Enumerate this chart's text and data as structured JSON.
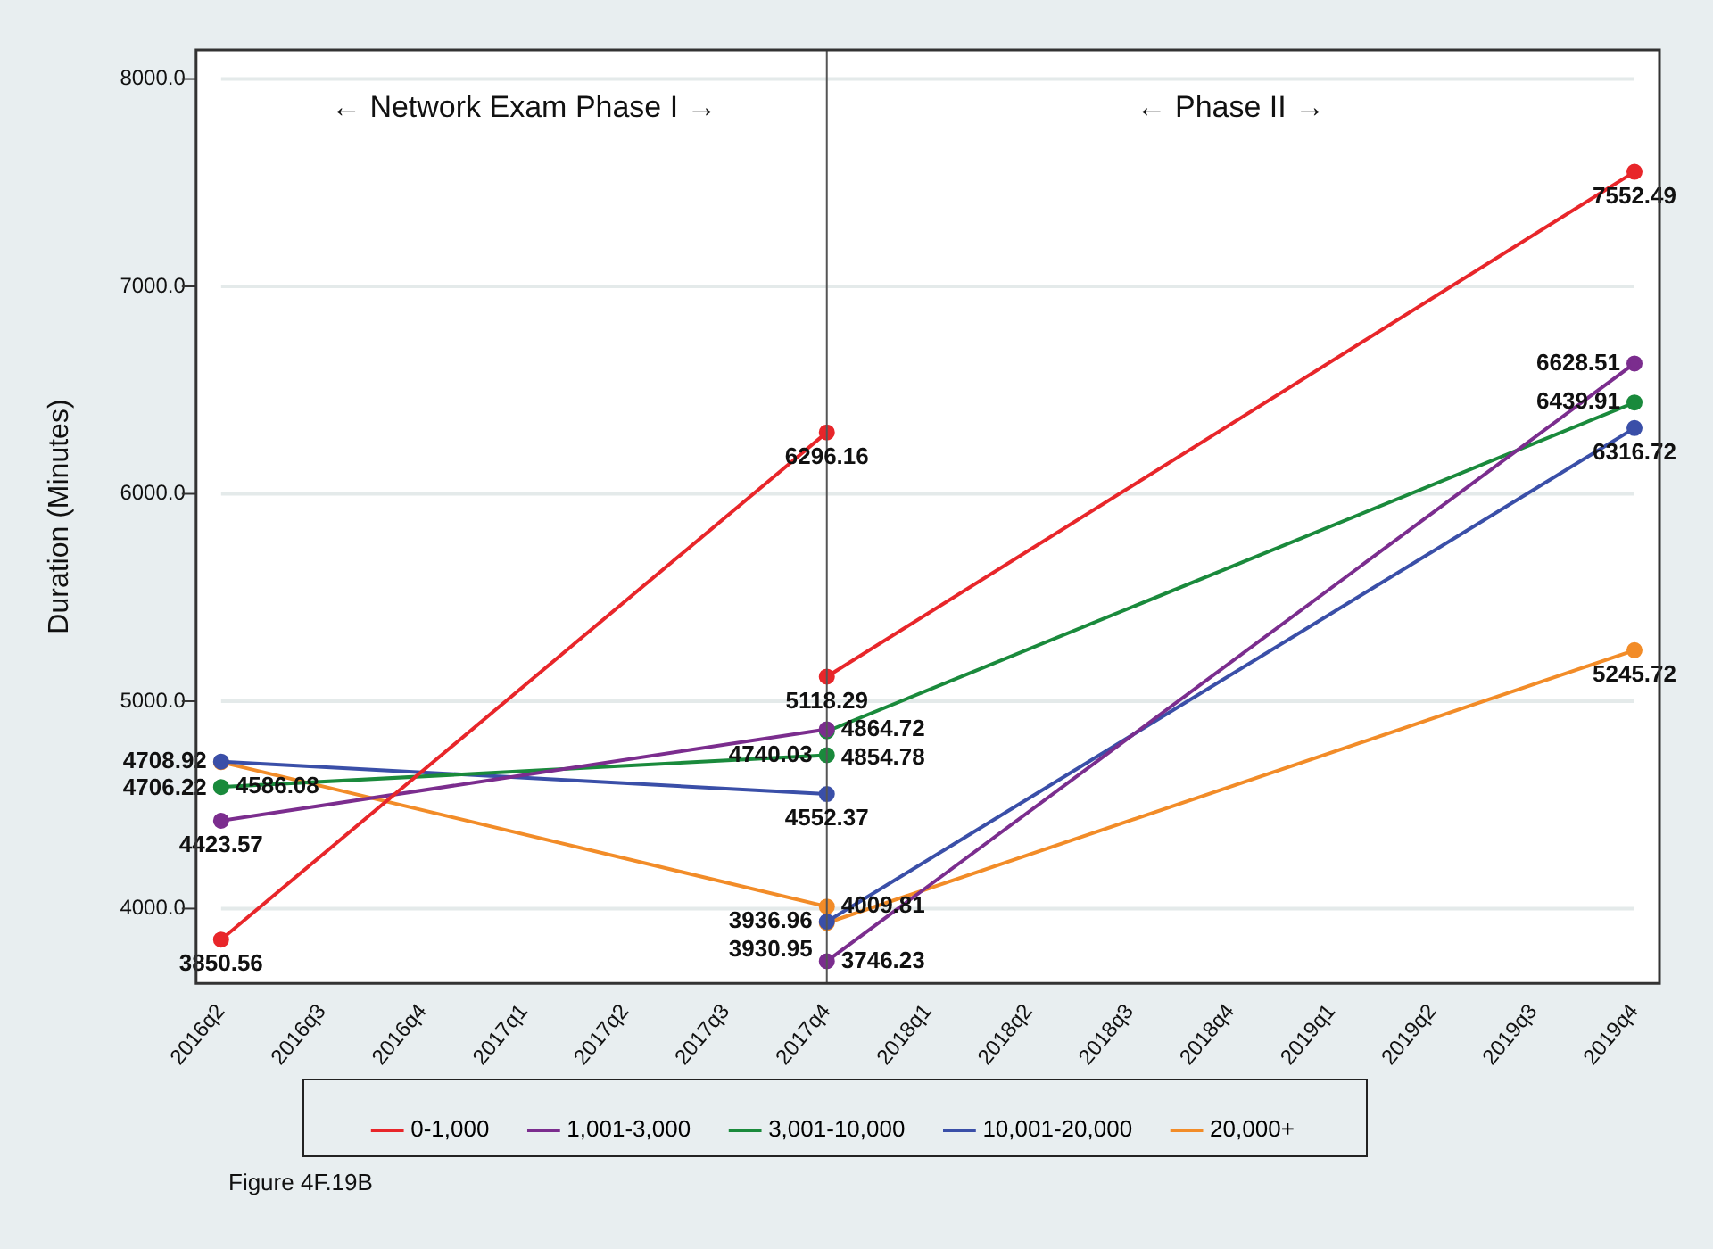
{
  "chart_data": {
    "type": "line",
    "ylabel": "Duration (Minutes)",
    "categories": [
      "2016q2",
      "2016q3",
      "2016q4",
      "2017q1",
      "2017q2",
      "2017q3",
      "2017q4",
      "2018q1",
      "2018q2",
      "2018q3",
      "2018q4",
      "2019q1",
      "2019q2",
      "2019q3",
      "2019q4"
    ],
    "series": [
      {
        "name": "0-1,000",
        "color": "#e8262a",
        "x": [
          "2016q2",
          "2017q4"
        ],
        "values": [
          3850.56,
          6296.16
        ]
      },
      {
        "name": "1,001-3,000",
        "color": "#7b2d8e",
        "x": [
          "2016q2",
          "2017q4"
        ],
        "values": [
          4423.57,
          4864.72
        ]
      },
      {
        "name": "3,001-10,000",
        "color": "#1a8a3c",
        "x": [
          "2016q2",
          "2017q4"
        ],
        "values": [
          4586.08,
          4740.03
        ]
      },
      {
        "name": "10,001-20,000",
        "color": "#3a4fa8",
        "x": [
          "2016q2",
          "2017q4"
        ],
        "values": [
          4708.92,
          4552.37
        ]
      },
      {
        "name": "20,000+",
        "color": "#f28c28",
        "x": [
          "2016q2",
          "2017q4"
        ],
        "values": [
          4706.22,
          4009.81
        ]
      },
      {
        "color": "#e8262a",
        "x": [
          "2017q4",
          "2019q4"
        ],
        "values": [
          5118.29,
          7552.49
        ]
      },
      {
        "color": "#7b2d8e",
        "x": [
          "2017q4",
          "2019q4"
        ],
        "values": [
          3746.23,
          6628.51
        ]
      },
      {
        "color": "#1a8a3c",
        "x": [
          "2017q4",
          "2019q4"
        ],
        "values": [
          4854.78,
          6439.91
        ]
      },
      {
        "color": "#3a4fa8",
        "x": [
          "2017q4",
          "2019q4"
        ],
        "values": [
          3936.96,
          6316.72
        ]
      },
      {
        "color": "#f28c28",
        "x": [
          "2017q4",
          "2019q4"
        ],
        "values": [
          3930.95,
          5245.72
        ]
      }
    ],
    "ylim": [
      3640,
      8140
    ],
    "yticks": [
      {
        "value": 4000,
        "label": "4000.0"
      },
      {
        "value": 5000,
        "label": "5000.0"
      },
      {
        "value": 6000,
        "label": "6000.0"
      },
      {
        "value": 7000,
        "label": "7000.0"
      },
      {
        "value": 8000,
        "label": "8000.0"
      }
    ],
    "ref_lines": [
      {
        "axis": "x",
        "value": "2017q4",
        "color": "#555555"
      }
    ],
    "annotations": [
      "← Network Exam Phase I →",
      "← Phase II →",
      "Figure 4F.19B"
    ],
    "data_labels": true,
    "grid": "y",
    "legend": "bottom",
    "marker": "circle",
    "line_style": "solid"
  }
}
